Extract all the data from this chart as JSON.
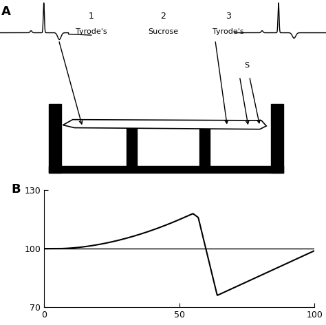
{
  "panel_A_label": "A",
  "panel_B_label": "B",
  "zone_labels": [
    "1",
    "2",
    "3"
  ],
  "zone_sublabels": [
    "Tyrode's",
    "Sucrose",
    "Tyrode's"
  ],
  "stimulation_label": "S",
  "plot_B": {
    "xlim": [
      0,
      100
    ],
    "ylim": [
      70,
      130
    ],
    "yticks": [
      70,
      100,
      130
    ],
    "xticks": [
      0,
      50,
      100
    ]
  },
  "line_color": "#000000",
  "background_color": "#ffffff",
  "ecg_left_x": [
    0.0,
    0.3,
    0.35,
    0.38,
    0.42,
    0.55,
    0.62,
    0.7,
    0.75,
    0.85,
    1.0
  ],
  "ecg_left_y": [
    0.0,
    0.0,
    0.05,
    -0.05,
    0.0,
    1.8,
    0.1,
    -0.35,
    0.0,
    -0.15,
    -0.2
  ],
  "ecg_right_x": [
    0.0,
    0.05,
    0.12,
    0.2,
    0.28,
    0.38,
    0.42,
    0.5,
    0.55,
    0.7,
    1.0
  ],
  "ecg_right_y": [
    0.15,
    0.15,
    0.18,
    0.15,
    0.15,
    1.8,
    0.05,
    0.0,
    0.0,
    0.0,
    0.0
  ]
}
